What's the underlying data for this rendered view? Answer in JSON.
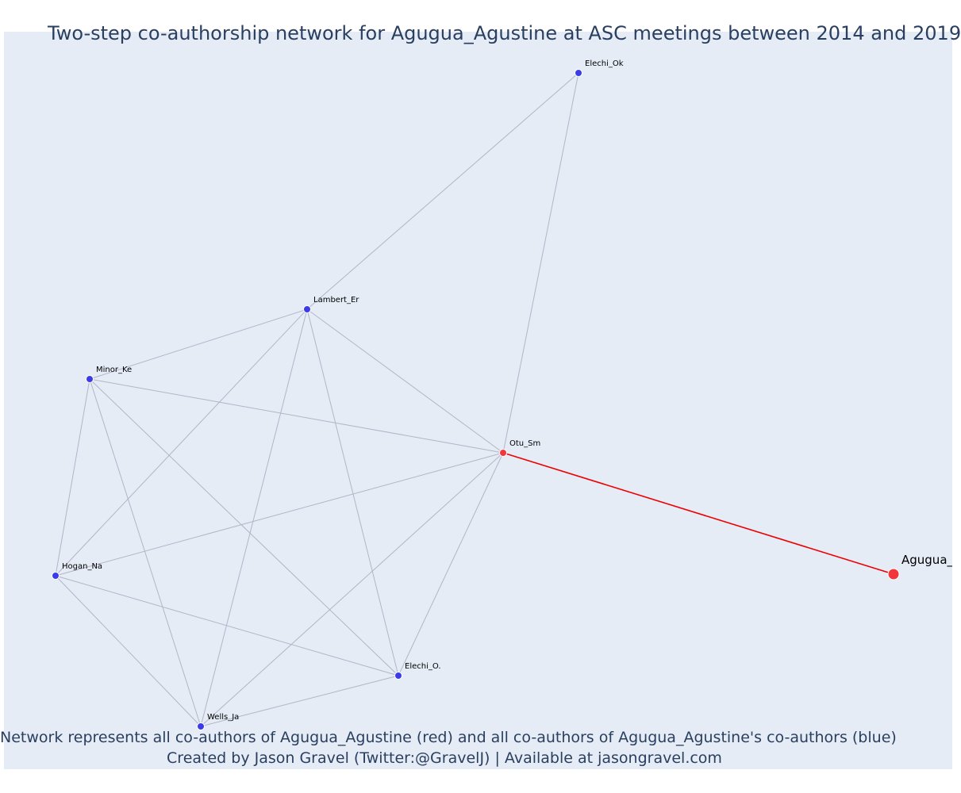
{
  "title": "Two-step co-authorship network for Agugua_Agustine at ASC meetings between 2014 and 2019",
  "caption": {
    "line1": "Network represents all co-authors of Agugua_Agustine (red) and all co-authors of Agugua_Agustine's co-authors (blue)",
    "line2": "Created by Jason Gravel (Twitter:@GravelJ) | Available at jasongravel.com"
  },
  "colors": {
    "plot_bg": "#e5ecf6",
    "edge": "#b4b4c8",
    "focal_edge": "#ee0000",
    "red_node": "#f0383c",
    "blue_node": "#3b3be8",
    "text": "#2a3f5f"
  },
  "network": {
    "nodes": [
      {
        "id": "agugua",
        "label": "Agugua_",
        "group": "focal"
      },
      {
        "id": "otu",
        "label": "Otu_Sm",
        "group": "red"
      },
      {
        "id": "elechi_ok",
        "label": "Elechi_Ok",
        "group": "blue"
      },
      {
        "id": "lambert",
        "label": "Lambert_Er",
        "group": "blue"
      },
      {
        "id": "minor",
        "label": "Minor_Ke",
        "group": "blue"
      },
      {
        "id": "hogan",
        "label": "Hogan_Na",
        "group": "blue"
      },
      {
        "id": "wells",
        "label": "Wells_Ja",
        "group": "blue"
      },
      {
        "id": "elechi_o",
        "label": "Elechi_O.",
        "group": "blue"
      }
    ],
    "edges": [
      {
        "source": "agugua",
        "target": "otu",
        "focal": true
      },
      {
        "source": "otu",
        "target": "elechi_ok"
      },
      {
        "source": "otu",
        "target": "lambert"
      },
      {
        "source": "otu",
        "target": "minor"
      },
      {
        "source": "otu",
        "target": "hogan"
      },
      {
        "source": "otu",
        "target": "wells"
      },
      {
        "source": "otu",
        "target": "elechi_o"
      },
      {
        "source": "lambert",
        "target": "elechi_ok"
      },
      {
        "source": "lambert",
        "target": "minor"
      },
      {
        "source": "lambert",
        "target": "hogan"
      },
      {
        "source": "lambert",
        "target": "wells"
      },
      {
        "source": "lambert",
        "target": "elechi_o"
      },
      {
        "source": "minor",
        "target": "hogan"
      },
      {
        "source": "minor",
        "target": "wells"
      },
      {
        "source": "minor",
        "target": "elechi_o"
      },
      {
        "source": "hogan",
        "target": "wells"
      },
      {
        "source": "hogan",
        "target": "elechi_o"
      },
      {
        "source": "wells",
        "target": "elechi_o"
      }
    ]
  }
}
